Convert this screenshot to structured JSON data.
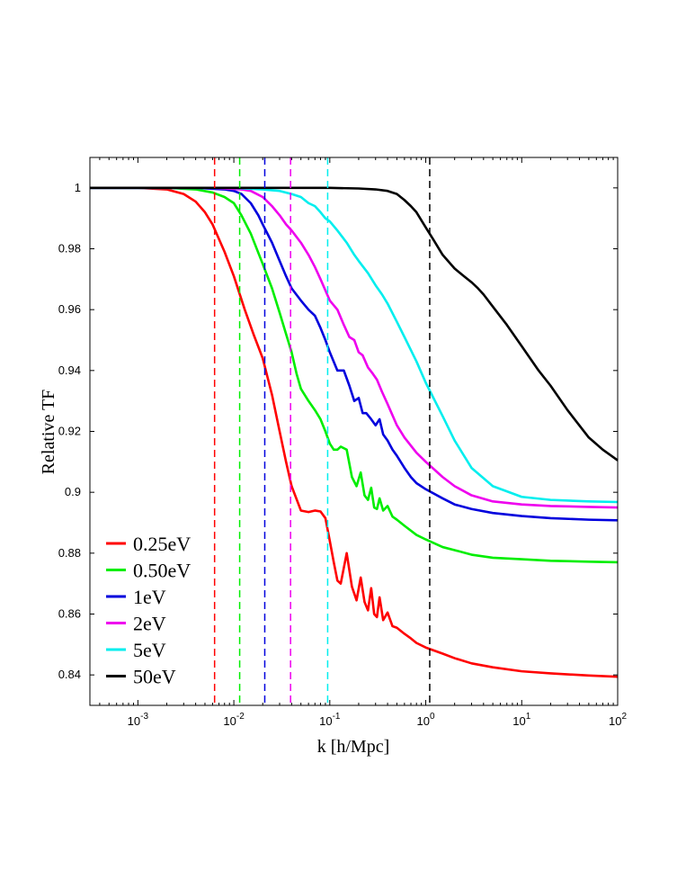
{
  "chart_data": {
    "type": "line",
    "xscale": "log",
    "xlim": [
      0.0003162,
      100
    ],
    "ylim": [
      0.83,
      1.01
    ],
    "xlabel": "k  [h/Mpc]",
    "ylabel": "Relative TF",
    "grid": false,
    "legend_position": "bottom-left",
    "x_ticks": [
      {
        "value": 0.001,
        "base": "10",
        "exp": "-3"
      },
      {
        "value": 0.01,
        "base": "10",
        "exp": "-2"
      },
      {
        "value": 0.1,
        "base": "10",
        "exp": "-1"
      },
      {
        "value": 1,
        "base": "10",
        "exp": "0"
      },
      {
        "value": 10,
        "base": "10",
        "exp": "1"
      },
      {
        "value": 100,
        "base": "10",
        "exp": "2"
      }
    ],
    "y_ticks": [
      {
        "value": 0.84,
        "label": "0.84"
      },
      {
        "value": 0.86,
        "label": "0.86"
      },
      {
        "value": 0.88,
        "label": "0.88"
      },
      {
        "value": 0.9,
        "label": "0.9"
      },
      {
        "value": 0.92,
        "label": "0.92"
      },
      {
        "value": 0.94,
        "label": "0.94"
      },
      {
        "value": 0.96,
        "label": "0.96"
      },
      {
        "value": 0.98,
        "label": "0.98"
      },
      {
        "value": 1,
        "label": "1"
      }
    ],
    "series": [
      {
        "name": "0.25eV",
        "color": "#ff0000",
        "k_cut": 0.0063,
        "x": [
          0.000316,
          0.001,
          0.002,
          0.003,
          0.004,
          0.005,
          0.006,
          0.008,
          0.01,
          0.013,
          0.016,
          0.02,
          0.025,
          0.03,
          0.035,
          0.04,
          0.05,
          0.06,
          0.07,
          0.08,
          0.09,
          0.1,
          0.11,
          0.12,
          0.13,
          0.15,
          0.17,
          0.19,
          0.21,
          0.23,
          0.25,
          0.27,
          0.29,
          0.31,
          0.33,
          0.36,
          0.4,
          0.45,
          0.5,
          0.6,
          0.7,
          0.8,
          1.0,
          1.5,
          2,
          3,
          5,
          10,
          20,
          50,
          100
        ],
        "y": [
          1.0,
          1.0,
          0.9995,
          0.998,
          0.9955,
          0.992,
          0.988,
          0.979,
          0.971,
          0.96,
          0.952,
          0.944,
          0.932,
          0.92,
          0.91,
          0.902,
          0.894,
          0.8935,
          0.894,
          0.8937,
          0.8915,
          0.884,
          0.877,
          0.871,
          0.87,
          0.88,
          0.869,
          0.8645,
          0.872,
          0.864,
          0.8612,
          0.8685,
          0.86,
          0.859,
          0.8655,
          0.858,
          0.8605,
          0.856,
          0.8555,
          0.8535,
          0.852,
          0.8505,
          0.849,
          0.847,
          0.8455,
          0.8438,
          0.8425,
          0.8412,
          0.8405,
          0.8398,
          0.8394
        ]
      },
      {
        "name": "0.50eV",
        "color": "#00ee00",
        "k_cut": 0.0115,
        "x": [
          0.000316,
          0.002,
          0.004,
          0.006,
          0.008,
          0.01,
          0.012,
          0.015,
          0.02,
          0.025,
          0.03,
          0.035,
          0.04,
          0.045,
          0.05,
          0.06,
          0.07,
          0.08,
          0.09,
          0.1,
          0.11,
          0.12,
          0.13,
          0.15,
          0.17,
          0.19,
          0.21,
          0.23,
          0.25,
          0.27,
          0.29,
          0.31,
          0.33,
          0.36,
          0.4,
          0.45,
          0.5,
          0.6,
          0.8,
          1.0,
          1.5,
          2,
          3,
          5,
          10,
          20,
          50,
          100
        ],
        "y": [
          1.0,
          1.0,
          0.9995,
          0.9985,
          0.997,
          0.995,
          0.991,
          0.985,
          0.975,
          0.967,
          0.959,
          0.952,
          0.946,
          0.939,
          0.934,
          0.93,
          0.927,
          0.924,
          0.92,
          0.916,
          0.914,
          0.914,
          0.915,
          0.914,
          0.905,
          0.902,
          0.9065,
          0.899,
          0.8975,
          0.9015,
          0.895,
          0.8945,
          0.898,
          0.894,
          0.8955,
          0.892,
          0.891,
          0.889,
          0.886,
          0.8845,
          0.882,
          0.881,
          0.8795,
          0.8785,
          0.878,
          0.8775,
          0.8772,
          0.877
        ]
      },
      {
        "name": "1eV",
        "color": "#0000dd",
        "k_cut": 0.021,
        "x": [
          0.000316,
          0.004,
          0.008,
          0.01,
          0.012,
          0.015,
          0.018,
          0.02,
          0.025,
          0.03,
          0.035,
          0.04,
          0.05,
          0.06,
          0.07,
          0.08,
          0.09,
          0.1,
          0.12,
          0.14,
          0.16,
          0.18,
          0.2,
          0.22,
          0.24,
          0.27,
          0.3,
          0.33,
          0.36,
          0.4,
          0.45,
          0.5,
          0.6,
          0.7,
          0.8,
          1.0,
          1.5,
          2,
          3,
          5,
          10,
          20,
          50,
          100
        ],
        "y": [
          1.0,
          1.0,
          0.9995,
          0.999,
          0.998,
          0.995,
          0.991,
          0.988,
          0.982,
          0.976,
          0.971,
          0.967,
          0.963,
          0.96,
          0.958,
          0.954,
          0.95,
          0.946,
          0.94,
          0.94,
          0.935,
          0.93,
          0.931,
          0.926,
          0.926,
          0.924,
          0.922,
          0.924,
          0.919,
          0.917,
          0.914,
          0.912,
          0.908,
          0.905,
          0.903,
          0.901,
          0.898,
          0.896,
          0.8945,
          0.8932,
          0.8922,
          0.8915,
          0.891,
          0.8908
        ]
      },
      {
        "name": "2eV",
        "color": "#ee00ee",
        "k_cut": 0.039,
        "x": [
          0.000316,
          0.006,
          0.012,
          0.015,
          0.02,
          0.025,
          0.03,
          0.035,
          0.04,
          0.05,
          0.06,
          0.07,
          0.08,
          0.1,
          0.12,
          0.14,
          0.16,
          0.18,
          0.2,
          0.22,
          0.25,
          0.28,
          0.31,
          0.35,
          0.4,
          0.5,
          0.6,
          0.8,
          1.0,
          1.5,
          2,
          3,
          5,
          10,
          20,
          50,
          100
        ],
        "y": [
          1.0,
          1.0,
          0.9995,
          0.999,
          0.997,
          0.994,
          0.991,
          0.988,
          0.986,
          0.982,
          0.978,
          0.974,
          0.97,
          0.963,
          0.96,
          0.955,
          0.951,
          0.95,
          0.946,
          0.945,
          0.941,
          0.939,
          0.937,
          0.933,
          0.929,
          0.922,
          0.918,
          0.913,
          0.91,
          0.905,
          0.902,
          0.899,
          0.897,
          0.896,
          0.8955,
          0.8952,
          0.895
        ]
      },
      {
        "name": "5eV",
        "color": "#00eeee",
        "k_cut": 0.095,
        "x": [
          0.000316,
          0.01,
          0.02,
          0.03,
          0.04,
          0.05,
          0.06,
          0.07,
          0.08,
          0.09,
          0.1,
          0.12,
          0.15,
          0.18,
          0.2,
          0.25,
          0.3,
          0.35,
          0.4,
          0.5,
          0.6,
          0.8,
          1.0,
          1.5,
          2,
          3,
          5,
          10,
          20,
          50,
          100
        ],
        "y": [
          1.0,
          1.0,
          0.9995,
          0.999,
          0.998,
          0.997,
          0.995,
          0.994,
          0.992,
          0.99,
          0.989,
          0.986,
          0.982,
          0.978,
          0.976,
          0.972,
          0.968,
          0.965,
          0.962,
          0.956,
          0.951,
          0.943,
          0.936,
          0.925,
          0.917,
          0.908,
          0.902,
          0.8985,
          0.8975,
          0.897,
          0.8968
        ]
      },
      {
        "name": "50eV",
        "color": "#000000",
        "k_cut": 1.1,
        "x": [
          0.000316,
          0.1,
          0.2,
          0.3,
          0.4,
          0.5,
          0.6,
          0.7,
          0.8,
          1.0,
          1.2,
          1.5,
          2,
          2.5,
          3,
          3.5,
          4,
          5,
          7,
          10,
          15,
          20,
          30,
          50,
          70,
          100
        ],
        "y": [
          1.0,
          1.0,
          0.9998,
          0.9995,
          0.999,
          0.998,
          0.996,
          0.994,
          0.992,
          0.987,
          0.983,
          0.978,
          0.9735,
          0.971,
          0.969,
          0.967,
          0.965,
          0.961,
          0.955,
          0.948,
          0.94,
          0.935,
          0.927,
          0.918,
          0.914,
          0.9105
        ]
      }
    ]
  }
}
